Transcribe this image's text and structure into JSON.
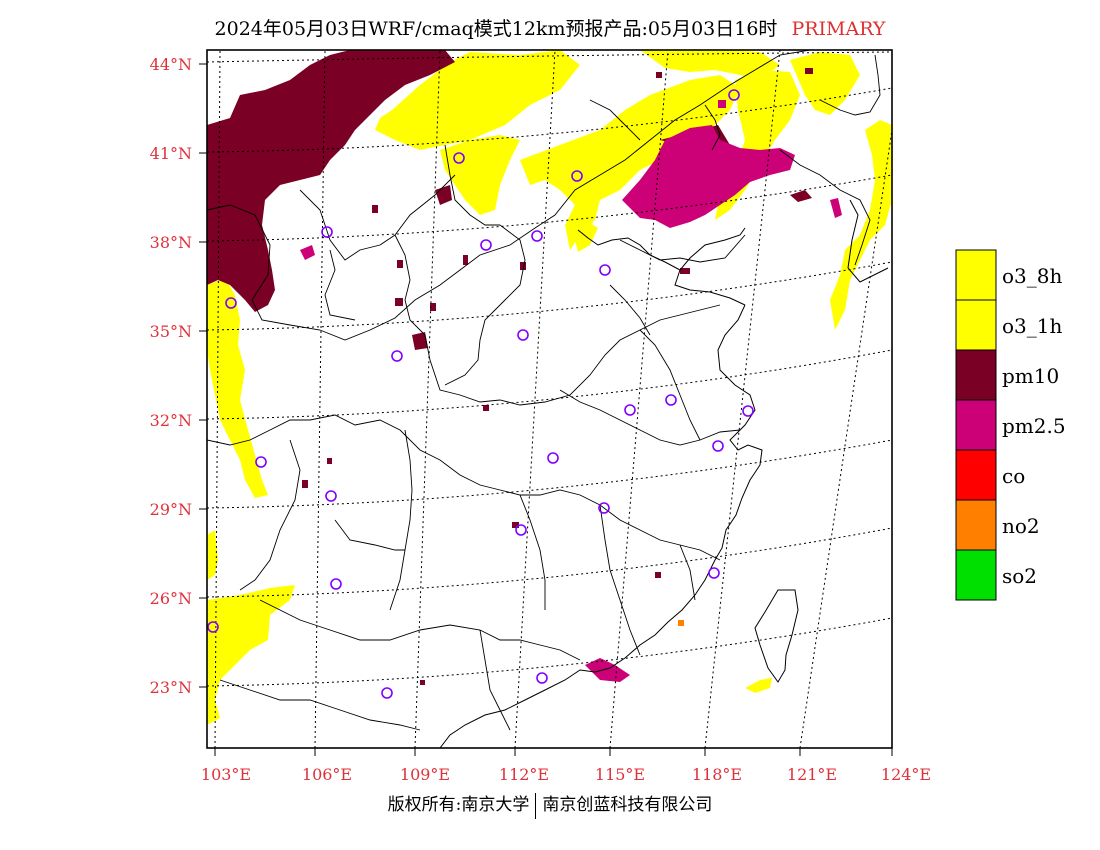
{
  "header": {
    "title": "2024年05月03日WRF/cmaq模式12km预报产品:05月03日16时",
    "tag": "PRIMARY"
  },
  "map": {
    "lat_labels": [
      "44°N",
      "41°N",
      "38°N",
      "35°N",
      "32°N",
      "29°N",
      "26°N",
      "23°N"
    ],
    "lon_labels": [
      "103°E",
      "106°E",
      "109°E",
      "112°E",
      "115°E",
      "118°E",
      "121°E",
      "124°E"
    ],
    "colors": {
      "o3_8h": "#ffff00",
      "o3_1h": "#ffff00",
      "pm10": "#7a0026",
      "pm2_5": "#cc0077",
      "co": "#ff0000",
      "no2": "#ff8000",
      "so2": "#00e000",
      "station": "#8000ff",
      "graticule": "#000000",
      "axis_label": "#e0303a"
    }
  },
  "legend": {
    "items": [
      {
        "label": "o3_8h",
        "color": "#ffff00"
      },
      {
        "label": "o3_1h",
        "color": "#ffff00"
      },
      {
        "label": "pm10",
        "color": "#7a0026"
      },
      {
        "label": "pm2.5",
        "color": "#cc0077"
      },
      {
        "label": "co",
        "color": "#ff0000"
      },
      {
        "label": "no2",
        "color": "#ff8000"
      },
      {
        "label": "so2",
        "color": "#00e000"
      }
    ]
  },
  "footer": {
    "left": "版权所有:南京大学",
    "right": "南京创蓝科技有限公司"
  }
}
